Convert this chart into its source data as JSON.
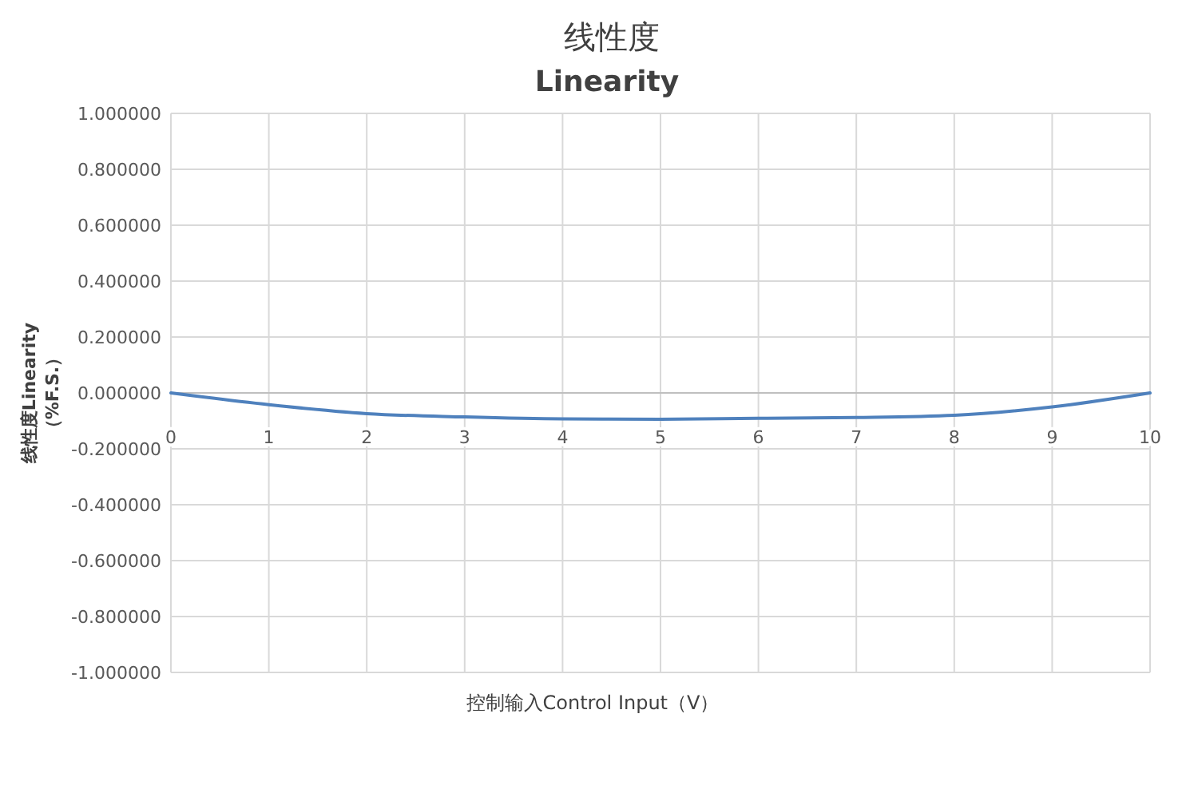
{
  "chart_data": {
    "type": "line",
    "title": "线性度",
    "subtitle": "Linearity",
    "xlabel": "控制输入Control Input（V）",
    "ylabel": "线性度Linearity\n（%F.S.）",
    "x": [
      0,
      1,
      2,
      3,
      4,
      5,
      6,
      7,
      8,
      9,
      10
    ],
    "series": [
      {
        "color": "#4f81bd",
        "values": [
          0,
          -0.042,
          -0.074,
          -0.086,
          -0.093,
          -0.094,
          -0.091,
          -0.088,
          -0.08,
          -0.05,
          0
        ]
      }
    ],
    "xlim": [
      0,
      10
    ],
    "xticks": [
      0,
      1,
      2,
      3,
      4,
      5,
      6,
      7,
      8,
      9,
      10
    ],
    "ylim": [
      -1,
      1
    ],
    "yticks": [
      {
        "value": -1,
        "label": "-1.000000"
      },
      {
        "value": -0.8,
        "label": "-0.800000"
      },
      {
        "value": -0.6,
        "label": "-0.600000"
      },
      {
        "value": -0.4,
        "label": "-0.400000"
      },
      {
        "value": -0.2,
        "label": "-0.200000"
      },
      {
        "value": 0,
        "label": "0.000000"
      },
      {
        "value": 0.2,
        "label": "0.200000"
      },
      {
        "value": 0.4,
        "label": "0.400000"
      },
      {
        "value": 0.6,
        "label": "0.600000"
      },
      {
        "value": 0.8,
        "label": "0.800000"
      },
      {
        "value": 1,
        "label": "1.000000"
      }
    ],
    "grid": true
  }
}
